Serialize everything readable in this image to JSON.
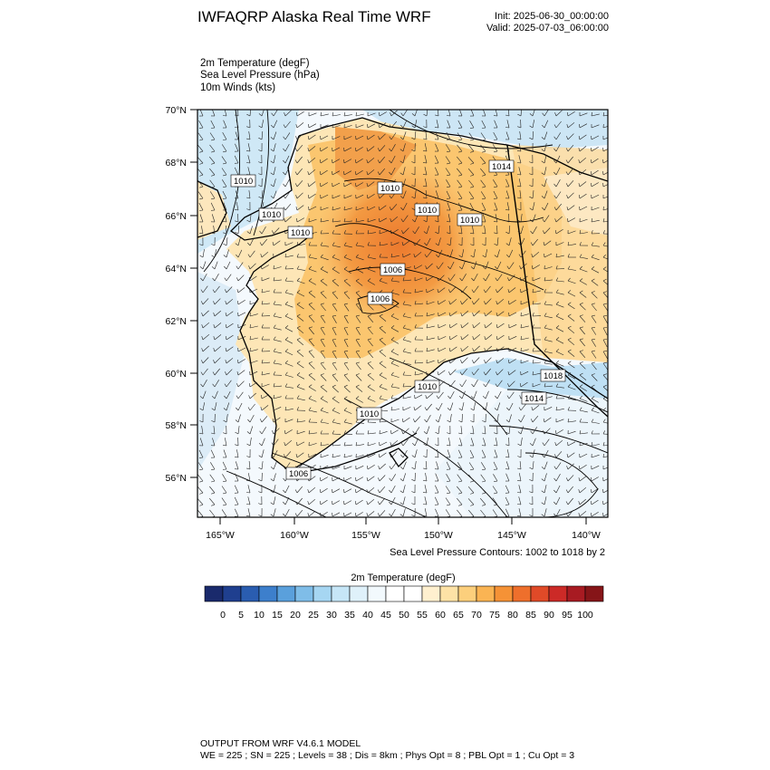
{
  "header": {
    "title": "IWFAQRP Alaska Real Time WRF",
    "init": "Init: 2025-06-30_00:00:00",
    "valid": "Valid: 2025-07-03_06:00:00"
  },
  "fields": [
    "2m Temperature   (degF)",
    "Sea Level Pressure   (hPa)",
    "10m Winds   (kts)"
  ],
  "map": {
    "lat_labels": [
      "70°N",
      "68°N",
      "66°N",
      "64°N",
      "62°N",
      "60°N",
      "58°N",
      "56°N"
    ],
    "lon_labels": [
      "165°W",
      "160°W",
      "155°W",
      "150°W",
      "145°W",
      "140°W"
    ],
    "contour_labels": [
      "1010",
      "1010",
      "1010",
      "1010",
      "1010",
      "1014",
      "1010",
      "1006",
      "1006",
      "1010",
      "1010",
      "1018",
      "1014",
      "1006"
    ],
    "colors": {
      "land_hot": "#f08a3a",
      "land_warm": "#fbc36a",
      "land_mild": "#fde8b8",
      "sea_cool": "#cfe8f6",
      "sea_cold": "#a9d6f1"
    }
  },
  "contour_note": "Sea Level Pressure Contours: 1002 to 1018 by 2",
  "colorbar": {
    "title": "2m Temperature  (degF)",
    "ticks": [
      "0",
      "5",
      "10",
      "15",
      "20",
      "25",
      "30",
      "35",
      "40",
      "45",
      "50",
      "55",
      "60",
      "65",
      "70",
      "75",
      "80",
      "85",
      "90",
      "95",
      "100"
    ],
    "colors": [
      "#1a2a6c",
      "#1f3f8f",
      "#2a5db0",
      "#3d7fcc",
      "#5aa0dc",
      "#7fbde8",
      "#a6d6f2",
      "#c6e6f7",
      "#dff1fa",
      "#f2f9fd",
      "#ffffff",
      "#ffffff",
      "#fff0cf",
      "#fde2a6",
      "#fccf7c",
      "#fab453",
      "#f59236",
      "#ee6f2c",
      "#e04a28",
      "#cc2a27",
      "#a81b22",
      "#861518"
    ]
  },
  "footer": {
    "line1": "OUTPUT FROM WRF V4.6.1 MODEL",
    "line2": "WE = 225 ; SN = 225 ; Levels = 38 ; Dis = 8km ; Phys Opt = 8 ; PBL Opt = 1 ; Cu Opt = 3"
  }
}
